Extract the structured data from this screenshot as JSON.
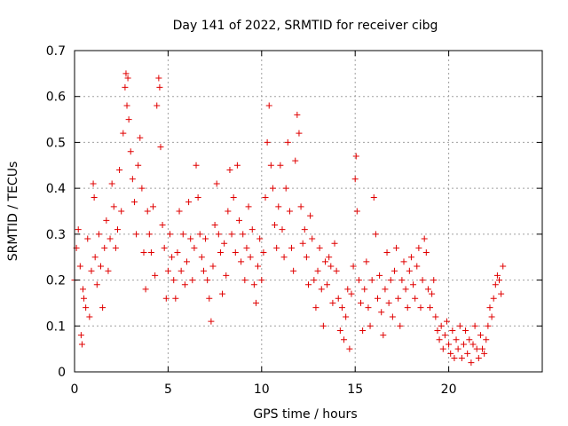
{
  "chart_data": {
    "type": "scatter",
    "title": "Day 141 of 2022, SRMTID for receiver cibg",
    "xlabel": "GPS time / hours",
    "ylabel": "SRMTID / TECUs",
    "xlim": [
      0,
      25
    ],
    "ylim": [
      0,
      0.7
    ],
    "xticks": [
      0,
      5,
      10,
      15,
      20
    ],
    "yticks": [
      0,
      0.1,
      0.2,
      0.3,
      0.4,
      0.5,
      0.6,
      0.7
    ],
    "xtick_labels": [
      "0",
      "5",
      "10",
      "15",
      "20"
    ],
    "ytick_labels": [
      "0",
      "0.1",
      "0.2",
      "0.3",
      "0.4",
      "0.5",
      "0.6",
      "0.7"
    ],
    "grid": true,
    "marker": "+",
    "color": "#e00000",
    "x_range_of_data": [
      0,
      23
    ],
    "series": [
      {
        "name": "SRMTID",
        "points": [
          [
            0.0,
            0.2
          ],
          [
            0.1,
            0.27
          ],
          [
            0.2,
            0.31
          ],
          [
            0.3,
            0.23
          ],
          [
            0.35,
            0.08
          ],
          [
            0.4,
            0.06
          ],
          [
            0.45,
            0.18
          ],
          [
            0.5,
            0.16
          ],
          [
            0.6,
            0.14
          ],
          [
            0.7,
            0.29
          ],
          [
            0.8,
            0.12
          ],
          [
            0.9,
            0.22
          ],
          [
            1.0,
            0.41
          ],
          [
            1.05,
            0.38
          ],
          [
            1.1,
            0.25
          ],
          [
            1.2,
            0.19
          ],
          [
            1.3,
            0.3
          ],
          [
            1.4,
            0.23
          ],
          [
            1.5,
            0.14
          ],
          [
            1.6,
            0.27
          ],
          [
            1.7,
            0.33
          ],
          [
            1.8,
            0.22
          ],
          [
            1.9,
            0.29
          ],
          [
            2.0,
            0.41
          ],
          [
            2.1,
            0.36
          ],
          [
            2.2,
            0.27
          ],
          [
            2.3,
            0.31
          ],
          [
            2.4,
            0.44
          ],
          [
            2.5,
            0.35
          ],
          [
            2.6,
            0.52
          ],
          [
            2.7,
            0.62
          ],
          [
            2.75,
            0.65
          ],
          [
            2.8,
            0.58
          ],
          [
            2.85,
            0.64
          ],
          [
            2.9,
            0.55
          ],
          [
            3.0,
            0.48
          ],
          [
            3.1,
            0.42
          ],
          [
            3.2,
            0.37
          ],
          [
            3.3,
            0.3
          ],
          [
            3.4,
            0.45
          ],
          [
            3.5,
            0.51
          ],
          [
            3.6,
            0.4
          ],
          [
            3.7,
            0.26
          ],
          [
            3.8,
            0.18
          ],
          [
            3.9,
            0.35
          ],
          [
            4.0,
            0.3
          ],
          [
            4.1,
            0.26
          ],
          [
            4.2,
            0.36
          ],
          [
            4.3,
            0.21
          ],
          [
            4.4,
            0.58
          ],
          [
            4.5,
            0.64
          ],
          [
            4.55,
            0.62
          ],
          [
            4.6,
            0.49
          ],
          [
            4.7,
            0.32
          ],
          [
            4.8,
            0.27
          ],
          [
            4.9,
            0.16
          ],
          [
            5.0,
            0.22
          ],
          [
            5.1,
            0.3
          ],
          [
            5.2,
            0.25
          ],
          [
            5.3,
            0.2
          ],
          [
            5.4,
            0.16
          ],
          [
            5.5,
            0.26
          ],
          [
            5.6,
            0.35
          ],
          [
            5.7,
            0.22
          ],
          [
            5.8,
            0.3
          ],
          [
            5.9,
            0.19
          ],
          [
            6.0,
            0.24
          ],
          [
            6.1,
            0.37
          ],
          [
            6.2,
            0.29
          ],
          [
            6.3,
            0.2
          ],
          [
            6.4,
            0.27
          ],
          [
            6.5,
            0.45
          ],
          [
            6.6,
            0.38
          ],
          [
            6.7,
            0.3
          ],
          [
            6.8,
            0.25
          ],
          [
            6.9,
            0.22
          ],
          [
            7.0,
            0.29
          ],
          [
            7.1,
            0.2
          ],
          [
            7.2,
            0.16
          ],
          [
            7.3,
            0.11
          ],
          [
            7.4,
            0.23
          ],
          [
            7.5,
            0.32
          ],
          [
            7.6,
            0.41
          ],
          [
            7.7,
            0.3
          ],
          [
            7.8,
            0.26
          ],
          [
            7.9,
            0.17
          ],
          [
            8.0,
            0.28
          ],
          [
            8.1,
            0.21
          ],
          [
            8.2,
            0.35
          ],
          [
            8.3,
            0.44
          ],
          [
            8.4,
            0.3
          ],
          [
            8.5,
            0.38
          ],
          [
            8.6,
            0.26
          ],
          [
            8.7,
            0.45
          ],
          [
            8.8,
            0.33
          ],
          [
            8.9,
            0.24
          ],
          [
            9.0,
            0.3
          ],
          [
            9.1,
            0.2
          ],
          [
            9.2,
            0.27
          ],
          [
            9.3,
            0.36
          ],
          [
            9.4,
            0.25
          ],
          [
            9.5,
            0.31
          ],
          [
            9.6,
            0.19
          ],
          [
            9.7,
            0.15
          ],
          [
            9.8,
            0.23
          ],
          [
            9.9,
            0.29
          ],
          [
            10.0,
            0.2
          ],
          [
            10.1,
            0.26
          ],
          [
            10.2,
            0.38
          ],
          [
            10.3,
            0.5
          ],
          [
            10.4,
            0.58
          ],
          [
            10.5,
            0.45
          ],
          [
            10.6,
            0.4
          ],
          [
            10.7,
            0.32
          ],
          [
            10.8,
            0.27
          ],
          [
            10.9,
            0.36
          ],
          [
            11.0,
            0.45
          ],
          [
            11.1,
            0.31
          ],
          [
            11.2,
            0.25
          ],
          [
            11.3,
            0.4
          ],
          [
            11.4,
            0.5
          ],
          [
            11.5,
            0.35
          ],
          [
            11.6,
            0.27
          ],
          [
            11.7,
            0.22
          ],
          [
            11.8,
            0.46
          ],
          [
            11.9,
            0.56
          ],
          [
            12.0,
            0.52
          ],
          [
            12.1,
            0.36
          ],
          [
            12.2,
            0.28
          ],
          [
            12.3,
            0.31
          ],
          [
            12.4,
            0.25
          ],
          [
            12.5,
            0.19
          ],
          [
            12.6,
            0.34
          ],
          [
            12.7,
            0.29
          ],
          [
            12.8,
            0.2
          ],
          [
            12.9,
            0.14
          ],
          [
            13.0,
            0.22
          ],
          [
            13.1,
            0.27
          ],
          [
            13.2,
            0.18
          ],
          [
            13.3,
            0.1
          ],
          [
            13.4,
            0.24
          ],
          [
            13.5,
            0.19
          ],
          [
            13.6,
            0.25
          ],
          [
            13.7,
            0.23
          ],
          [
            13.8,
            0.15
          ],
          [
            13.9,
            0.28
          ],
          [
            14.0,
            0.22
          ],
          [
            14.1,
            0.16
          ],
          [
            14.2,
            0.09
          ],
          [
            14.3,
            0.14
          ],
          [
            14.4,
            0.07
          ],
          [
            14.5,
            0.12
          ],
          [
            14.6,
            0.18
          ],
          [
            14.7,
            0.05
          ],
          [
            14.8,
            0.17
          ],
          [
            14.9,
            0.23
          ],
          [
            15.0,
            0.42
          ],
          [
            15.05,
            0.47
          ],
          [
            15.1,
            0.35
          ],
          [
            15.2,
            0.2
          ],
          [
            15.3,
            0.15
          ],
          [
            15.4,
            0.09
          ],
          [
            15.5,
            0.18
          ],
          [
            15.6,
            0.24
          ],
          [
            15.7,
            0.14
          ],
          [
            15.8,
            0.1
          ],
          [
            15.9,
            0.2
          ],
          [
            16.0,
            0.38
          ],
          [
            16.1,
            0.3
          ],
          [
            16.2,
            0.16
          ],
          [
            16.3,
            0.21
          ],
          [
            16.4,
            0.13
          ],
          [
            16.5,
            0.08
          ],
          [
            16.6,
            0.18
          ],
          [
            16.7,
            0.26
          ],
          [
            16.8,
            0.15
          ],
          [
            16.9,
            0.2
          ],
          [
            17.0,
            0.12
          ],
          [
            17.1,
            0.22
          ],
          [
            17.2,
            0.27
          ],
          [
            17.3,
            0.16
          ],
          [
            17.4,
            0.1
          ],
          [
            17.5,
            0.2
          ],
          [
            17.6,
            0.24
          ],
          [
            17.7,
            0.18
          ],
          [
            17.8,
            0.14
          ],
          [
            17.9,
            0.22
          ],
          [
            18.0,
            0.25
          ],
          [
            18.1,
            0.19
          ],
          [
            18.2,
            0.16
          ],
          [
            18.3,
            0.23
          ],
          [
            18.4,
            0.27
          ],
          [
            18.5,
            0.14
          ],
          [
            18.6,
            0.2
          ],
          [
            18.7,
            0.29
          ],
          [
            18.8,
            0.26
          ],
          [
            18.9,
            0.18
          ],
          [
            19.0,
            0.14
          ],
          [
            19.1,
            0.17
          ],
          [
            19.2,
            0.2
          ],
          [
            19.3,
            0.12
          ],
          [
            19.4,
            0.09
          ],
          [
            19.5,
            0.07
          ],
          [
            19.6,
            0.1
          ],
          [
            19.7,
            0.05
          ],
          [
            19.8,
            0.08
          ],
          [
            19.9,
            0.11
          ],
          [
            20.0,
            0.06
          ],
          [
            20.1,
            0.04
          ],
          [
            20.2,
            0.09
          ],
          [
            20.3,
            0.03
          ],
          [
            20.4,
            0.07
          ],
          [
            20.5,
            0.05
          ],
          [
            20.6,
            0.1
          ],
          [
            20.7,
            0.03
          ],
          [
            20.8,
            0.06
          ],
          [
            20.9,
            0.09
          ],
          [
            21.0,
            0.04
          ],
          [
            21.1,
            0.07
          ],
          [
            21.2,
            0.02
          ],
          [
            21.3,
            0.06
          ],
          [
            21.4,
            0.1
          ],
          [
            21.5,
            0.05
          ],
          [
            21.6,
            0.03
          ],
          [
            21.7,
            0.08
          ],
          [
            21.8,
            0.05
          ],
          [
            21.9,
            0.04
          ],
          [
            22.0,
            0.07
          ],
          [
            22.1,
            0.1
          ],
          [
            22.2,
            0.14
          ],
          [
            22.3,
            0.12
          ],
          [
            22.4,
            0.16
          ],
          [
            22.5,
            0.19
          ],
          [
            22.6,
            0.21
          ],
          [
            22.7,
            0.2
          ],
          [
            22.8,
            0.17
          ],
          [
            22.9,
            0.23
          ]
        ]
      }
    ]
  }
}
